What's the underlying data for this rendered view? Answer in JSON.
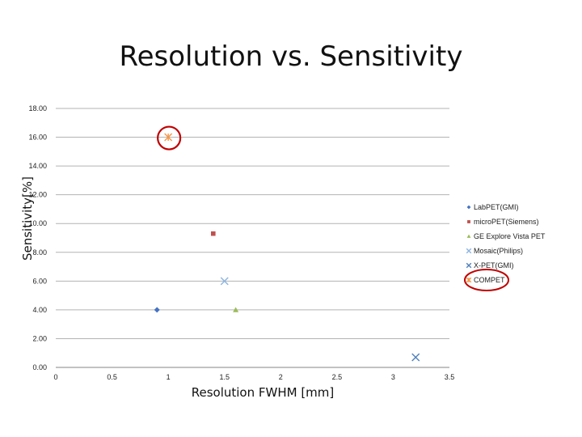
{
  "chart_data": {
    "type": "scatter",
    "title": "Resolution vs. Sensitivity",
    "xlabel": "Resolution FWHM [mm]",
    "ylabel": "Sensitivity[%]",
    "xlim": [
      0,
      3.5
    ],
    "ylim": [
      0,
      18
    ],
    "x_ticks": [
      "0",
      "0.5",
      "1",
      "1.5",
      "2",
      "2.5",
      "3",
      "3.5"
    ],
    "x_tick_values": [
      0,
      0.5,
      1,
      1.5,
      2,
      2.5,
      3,
      3.5
    ],
    "y_ticks": [
      "0.00",
      "2.00",
      "4.00",
      "6.00",
      "8.00",
      "10.00",
      "12.00",
      "14.00",
      "16.00",
      "18.00"
    ],
    "y_tick_values": [
      0,
      2,
      4,
      6,
      8,
      10,
      12,
      14,
      16,
      18
    ],
    "grid": "horizontal",
    "legend_position": "right",
    "series": [
      {
        "name": "LabPET(GMI)",
        "marker": "diamond",
        "color": "#4472c4",
        "points": [
          [
            0.9,
            4.0
          ]
        ]
      },
      {
        "name": "microPET(Siemens)",
        "marker": "square",
        "color": "#c0504d",
        "points": [
          [
            1.4,
            9.3
          ]
        ]
      },
      {
        "name": "GE Explore Vista PET",
        "marker": "triangle",
        "color": "#9bbb59",
        "points": [
          [
            1.6,
            4.0
          ]
        ]
      },
      {
        "name": "Mosaic(Philips)",
        "marker": "x",
        "color": "#8db3e2",
        "points": [
          [
            1.5,
            6.0
          ]
        ]
      },
      {
        "name": "X-PET(GMI)",
        "marker": "x",
        "color": "#4f81bd",
        "points": [
          [
            3.2,
            0.7
          ]
        ]
      },
      {
        "name": "COMPET",
        "marker": "star",
        "color": "#f79646",
        "points": [
          [
            1.0,
            16.0
          ]
        ]
      }
    ],
    "annotations": [
      {
        "type": "circle",
        "color": "#c00000",
        "target": "COMPET point"
      },
      {
        "type": "circle",
        "color": "#c00000",
        "target": "COMPET legend entry"
      }
    ]
  }
}
